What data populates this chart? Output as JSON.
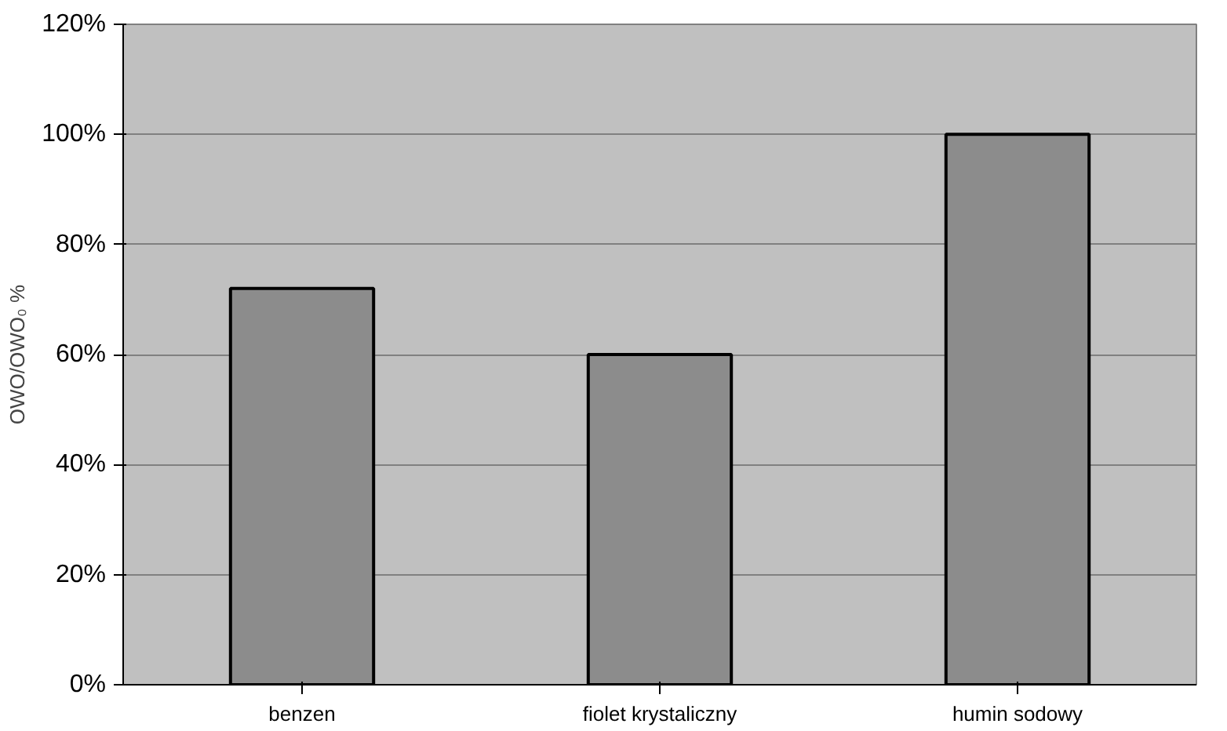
{
  "chart_data": {
    "type": "bar",
    "ylabel": "OWO/OWO₀ %",
    "categories": [
      "benzen",
      "fiolet krystaliczny",
      "humin sodowy"
    ],
    "values": [
      72,
      60,
      100
    ],
    "color": "#8c8c8c",
    "ylim": [
      0,
      120
    ],
    "yticks": [
      {
        "value": 0,
        "label": "0%"
      },
      {
        "value": 20,
        "label": "20%"
      },
      {
        "value": 40,
        "label": "40%"
      },
      {
        "value": 60,
        "label": "60%"
      },
      {
        "value": 80,
        "label": "80%"
      },
      {
        "value": 100,
        "label": "100%"
      },
      {
        "value": 120,
        "label": "120%"
      }
    ],
    "grid": "y"
  }
}
